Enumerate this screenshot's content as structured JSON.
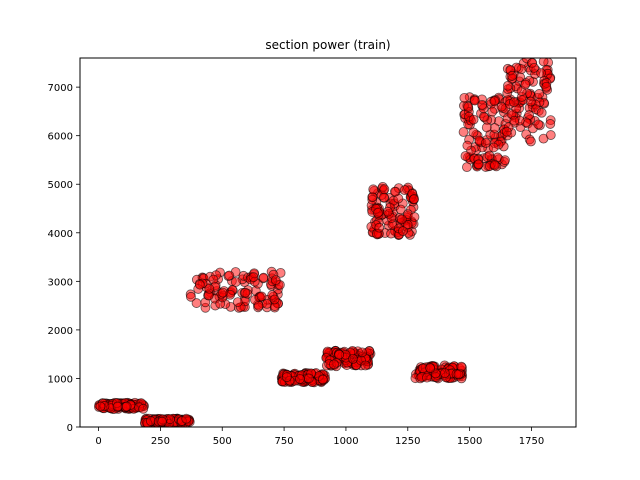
{
  "chart_data": {
    "type": "scatter",
    "title": "section power (train)",
    "xlabel": "",
    "ylabel": "",
    "xlim": [
      -75,
      1930
    ],
    "ylim": [
      0,
      7600
    ],
    "xticks": [
      0,
      250,
      500,
      750,
      1000,
      1250,
      1500,
      1750
    ],
    "yticks": [
      0,
      1000,
      2000,
      3000,
      4000,
      5000,
      6000,
      7000
    ],
    "grid": false,
    "legend": "none",
    "marker_color": "#ff0000",
    "marker_edge_color": "#000000",
    "marker_alpha": 0.5,
    "clusters": [
      {
        "x_range": [
          0,
          185
        ],
        "y_range": [
          370,
          500
        ]
      },
      {
        "x_range": [
          185,
          370
        ],
        "y_range": [
          60,
          175
        ]
      },
      {
        "x_range": [
          370,
          740
        ],
        "y_range": [
          2450,
          3200
        ]
      },
      {
        "x_range": [
          740,
          920
        ],
        "y_range": [
          920,
          1120
        ]
      },
      {
        "x_range": [
          920,
          1100
        ],
        "y_range": [
          1250,
          1580
        ]
      },
      {
        "x_range": [
          1100,
          1280
        ],
        "y_range": [
          3950,
          4950
        ]
      },
      {
        "x_range": [
          1280,
          1470
        ],
        "y_range": [
          1000,
          1280
        ]
      },
      {
        "x_range": [
          1470,
          1650
        ],
        "y_range": [
          5350,
          6800
        ]
      },
      {
        "x_range": [
          1650,
          1830
        ],
        "y_range": [
          5850,
          7600
        ]
      }
    ]
  }
}
